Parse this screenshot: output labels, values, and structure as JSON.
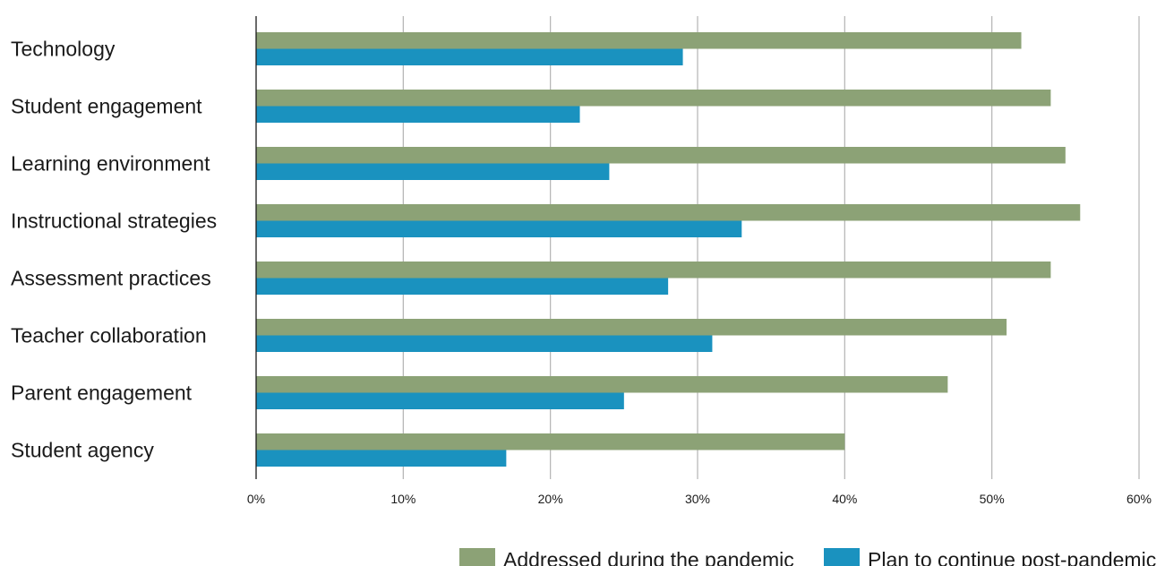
{
  "chart_data": {
    "type": "bar",
    "orientation": "horizontal",
    "categories": [
      "Technology",
      "Student engagement",
      "Learning environment",
      "Instructional strategies",
      "Assessment practices",
      "Teacher collaboration",
      "Parent engagement",
      "Student agency"
    ],
    "series": [
      {
        "name": "Addressed during the pandemic",
        "color": "#8ca276",
        "values": [
          52,
          54,
          55,
          56,
          54,
          51,
          47,
          40
        ]
      },
      {
        "name": "Plan to continue post-pandemic",
        "color": "#1a92bf",
        "values": [
          29,
          22,
          24,
          33,
          28,
          31,
          25,
          17
        ]
      }
    ],
    "xlim": [
      0,
      60
    ],
    "xticks": [
      "0%",
      "10%",
      "20%",
      "30%",
      "40%",
      "50%",
      "60%"
    ],
    "grid": true,
    "legend_position": "bottom-right"
  }
}
